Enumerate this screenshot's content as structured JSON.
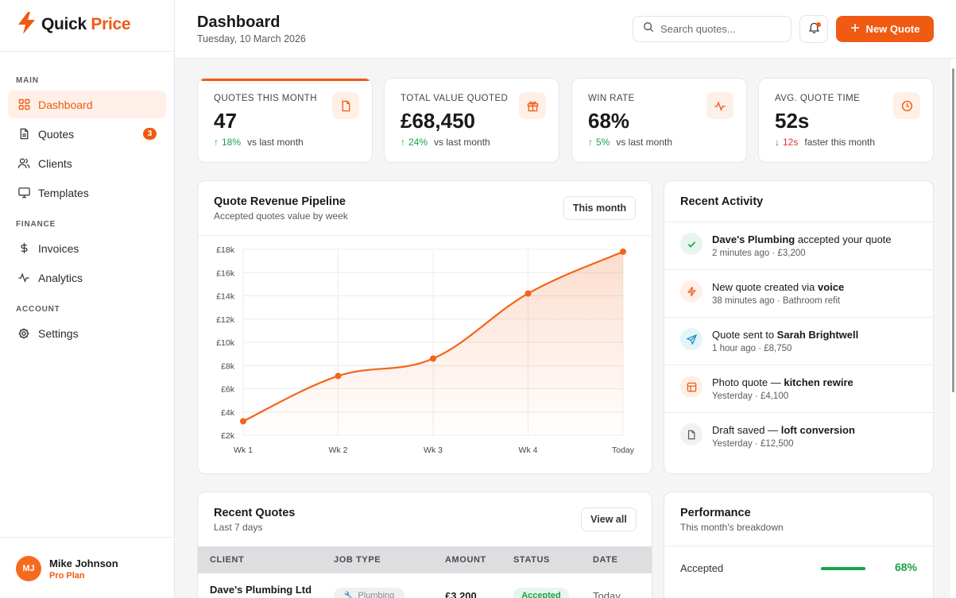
{
  "brand": {
    "name_part1": "Quick",
    "name_part2": "Price"
  },
  "sidebar": {
    "sections": {
      "main": "MAIN",
      "finance": "FINANCE",
      "account": "ACCOUNT"
    },
    "items": [
      {
        "label": "Dashboard",
        "icon": "grid-icon",
        "active": true
      },
      {
        "label": "Quotes",
        "icon": "document-icon",
        "badge": "3"
      },
      {
        "label": "Clients",
        "icon": "users-icon"
      },
      {
        "label": "Templates",
        "icon": "monitor-icon"
      },
      {
        "label": "Invoices",
        "icon": "dollar-icon"
      },
      {
        "label": "Analytics",
        "icon": "activity-icon"
      },
      {
        "label": "Settings",
        "icon": "settings-icon"
      }
    ],
    "user": {
      "initials": "MJ",
      "name": "Mike Johnson",
      "plan": "Pro Plan"
    }
  },
  "header": {
    "title": "Dashboard",
    "date": "Tuesday, 10 March 2026",
    "search_placeholder": "Search quotes...",
    "new_quote_label": "New Quote"
  },
  "stats": [
    {
      "label": "QUOTES THIS MONTH",
      "value": "47",
      "change": "18%",
      "direction": "up",
      "suffix": "vs last month",
      "icon": "document-icon"
    },
    {
      "label": "TOTAL VALUE QUOTED",
      "value": "£68,450",
      "change": "24%",
      "direction": "up",
      "suffix": "vs last month",
      "icon": "gift-icon"
    },
    {
      "label": "WIN RATE",
      "value": "68%",
      "change": "5%",
      "direction": "up",
      "suffix": "vs last month",
      "icon": "pulse-icon"
    },
    {
      "label": "AVG. QUOTE TIME",
      "value": "52s",
      "change": "12s",
      "direction": "down",
      "suffix": "faster this month",
      "icon": "clock-icon"
    }
  ],
  "pipeline": {
    "title": "Quote Revenue Pipeline",
    "subtitle": "Accepted quotes value by week",
    "filter_label": "This month"
  },
  "chart_data": {
    "type": "area",
    "categories": [
      "Wk 1",
      "Wk 2",
      "Wk 3",
      "Wk 4",
      "Today"
    ],
    "series": [
      {
        "values": [
          3200,
          7100,
          8600,
          14200,
          17800
        ]
      }
    ],
    "yticks": [
      "£2k",
      "£4k",
      "£6k",
      "£8k",
      "£10k",
      "£12k",
      "£14k",
      "£16k",
      "£18k"
    ],
    "ylim": [
      2000,
      18000
    ],
    "grid": true,
    "color": "#f26418"
  },
  "activity": {
    "title": "Recent Activity",
    "items": [
      {
        "pre": "",
        "bold": "Dave's Plumbing",
        "post": " accepted your quote",
        "meta": "2 minutes ago · £3,200",
        "icon": "check-icon",
        "bg": "#e6f6ec",
        "fg": "#17a34a"
      },
      {
        "pre": "New quote created via ",
        "bold": "voice",
        "post": "",
        "meta": "38 minutes ago · Bathroom refit",
        "icon": "bolt-icon",
        "bg": "#fff0e7",
        "fg": "#f05a12"
      },
      {
        "pre": "Quote sent to ",
        "bold": "Sarah Brightwell",
        "post": "",
        "meta": "1 hour ago · £8,750",
        "icon": "send-icon",
        "bg": "#e5f4fb",
        "fg": "#1d8fc4"
      },
      {
        "pre": "Photo quote — ",
        "bold": "kitchen rewire",
        "post": "",
        "meta": "Yesterday · £4,100",
        "icon": "image-icon",
        "bg": "#fff0e7",
        "fg": "#f05a12"
      },
      {
        "pre": "Draft saved — ",
        "bold": "loft conversion",
        "post": "",
        "meta": "Yesterday · £12,500",
        "icon": "file-icon",
        "bg": "#f1f1f3",
        "fg": "#5b5b60"
      }
    ]
  },
  "recent_quotes": {
    "title": "Recent Quotes",
    "subtitle": "Last 7 days",
    "view_all_label": "View all",
    "columns": [
      "CLIENT",
      "JOB TYPE",
      "AMOUNT",
      "STATUS",
      "DATE"
    ],
    "rows": [
      {
        "client": "Dave's Plumbing Ltd",
        "job": "Plumbing",
        "amount": "£3,200",
        "status": "Accepted",
        "date": "Today"
      }
    ]
  },
  "performance": {
    "title": "Performance",
    "subtitle": "This month's breakdown",
    "rows": [
      {
        "label": "Accepted",
        "value": "68%",
        "fraction": 0.68
      }
    ]
  }
}
